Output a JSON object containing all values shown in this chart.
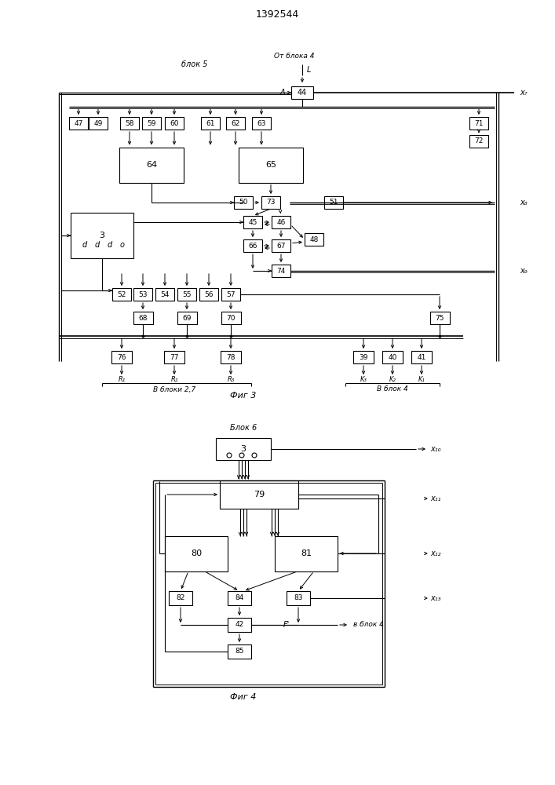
{
  "title": "1392544",
  "bg_color": "#ffffff",
  "line_color": "#000000",
  "box_color": "#ffffff",
  "text_color": "#000000",
  "fig3_caption": "Фиг 3",
  "fig4_caption": "Фиг 4",
  "blok5_label": "блок 5",
  "ot_bloka4_label": "От блока 4",
  "blok6_label": "Блок 6",
  "v_bloki_label": "В блоки 2,7",
  "v_blok4_label": "В блок 4",
  "v_blok4_fig4": "в блок 4"
}
